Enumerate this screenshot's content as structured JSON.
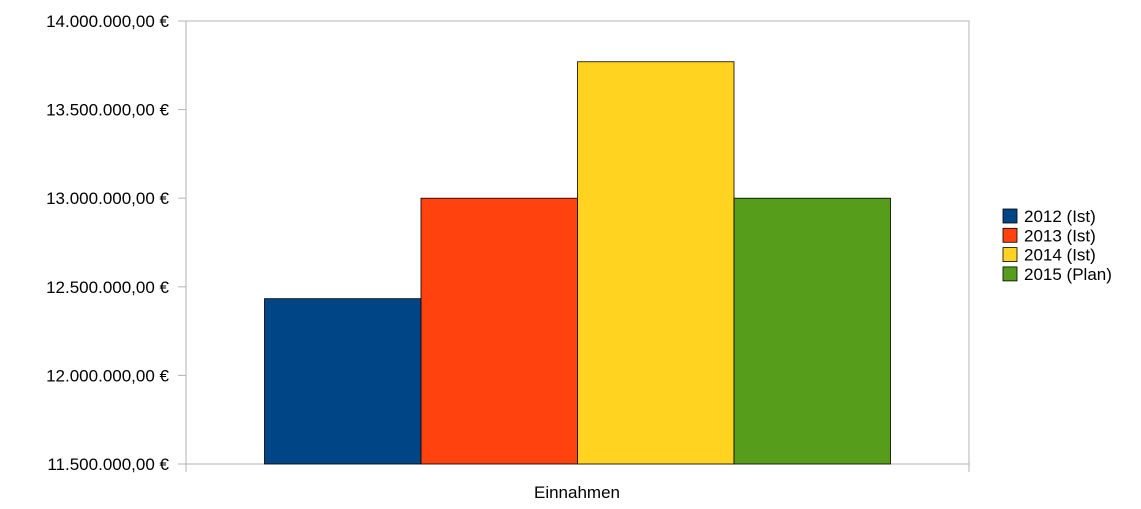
{
  "chart_data": {
    "type": "bar",
    "categories": [
      "Einnahmen"
    ],
    "xlabel": "Einnahmen",
    "series": [
      {
        "name": "2012 (Ist)",
        "values": [
          12433000
        ],
        "color": "#004586"
      },
      {
        "name": "2013 (Ist)",
        "values": [
          13000000
        ],
        "color": "#ff420e"
      },
      {
        "name": "2014 (Ist)",
        "values": [
          13770000
        ],
        "color": "#ffd320"
      },
      {
        "name": "2015 (Plan)",
        "values": [
          13000000
        ],
        "color": "#579d1c"
      }
    ],
    "ylim": [
      11500000,
      14000000
    ],
    "yticks": [
      11500000,
      12000000,
      12500000,
      13000000,
      13500000,
      14000000
    ],
    "ytick_labels": [
      "11.500.000,00 €",
      "12.000.000,00 €",
      "12.500.000,00 €",
      "13.000.000,00 €",
      "13.500.000,00 €",
      "14.000.000,00 €"
    ],
    "grid": false,
    "legend_position": "right"
  }
}
